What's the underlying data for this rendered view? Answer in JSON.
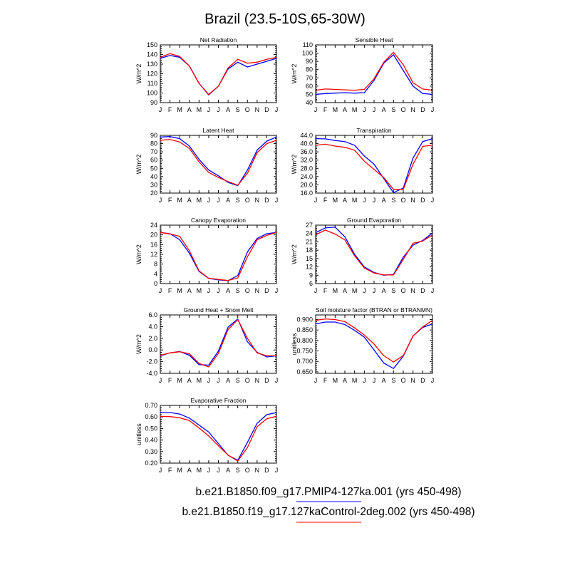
{
  "chart_data": {
    "title": "Brazil (23.5-10S,65-30W)",
    "months": [
      "J",
      "F",
      "M",
      "A",
      "M",
      "J",
      "J",
      "A",
      "S",
      "O",
      "N",
      "D",
      "J"
    ],
    "legend": [
      {
        "label": "b.e21.B1850.f09_g17.PMIP4-127ka.001 (yrs 450-498)",
        "color": "#0000ff"
      },
      {
        "label": "b.e21.B1850.f19_g17.127kaControl-2deg.002 (yrs 450-498)",
        "color": "#ff0000"
      }
    ],
    "panels": [
      {
        "type": "line",
        "title": "Net Radiation",
        "ylabel": "W/m^2",
        "ylim": [
          90,
          150
        ],
        "yticks": [
          "90",
          "100",
          "110",
          "120",
          "130",
          "140",
          "150"
        ],
        "ytick_values": [
          90,
          100,
          110,
          120,
          130,
          140,
          150
        ],
        "series": [
          {
            "name": "PMIP4-127ka",
            "color": "#0000ff",
            "values": [
              136,
              139,
              137,
              128,
              110,
              98,
              107,
              125,
              132,
              127,
              130,
              133,
              136
            ]
          },
          {
            "name": "127kaControl",
            "color": "#ff0000",
            "values": [
              137,
              141,
              138,
              128,
              110,
              98.5,
              107,
              126,
              135,
              131,
              132,
              135,
              137
            ]
          }
        ]
      },
      {
        "type": "line",
        "title": "Sensible Heat",
        "ylabel": "W/m^2",
        "ylim": [
          40,
          110
        ],
        "yticks": [
          "40",
          "50",
          "60",
          "70",
          "80",
          "90",
          "100",
          "110"
        ],
        "ytick_values": [
          40,
          50,
          60,
          70,
          80,
          90,
          100,
          110
        ],
        "series": [
          {
            "name": "PMIP4-127ka",
            "color": "#0000ff",
            "values": [
              50,
              51,
              51.5,
              52,
              51.5,
              52,
              67,
              88,
              98,
              79,
              60,
              51,
              50
            ]
          },
          {
            "name": "127kaControl",
            "color": "#ff0000",
            "values": [
              55,
              56.5,
              56,
              55.5,
              55,
              56,
              69,
              89,
              101,
              86,
              64,
              56.5,
              55
            ]
          }
        ]
      },
      {
        "type": "line",
        "title": "Latent Heat",
        "ylabel": "W/m^2",
        "ylim": [
          20,
          90
        ],
        "yticks": [
          "20",
          "30",
          "40",
          "50",
          "60",
          "70",
          "80",
          "90"
        ],
        "ytick_values": [
          20,
          30,
          40,
          50,
          60,
          70,
          80,
          90
        ],
        "series": [
          {
            "name": "PMIP4-127ka",
            "color": "#0000ff",
            "values": [
              88,
              88.5,
              86,
              77,
              61,
              48,
              41,
              33,
              29,
              48,
              72,
              83,
              88
            ]
          },
          {
            "name": "127kaControl",
            "color": "#ff0000",
            "values": [
              84,
              85,
              82,
              74,
              58,
              45,
              39,
              34,
              29.5,
              44,
              69,
              80,
              84
            ]
          }
        ]
      },
      {
        "type": "line",
        "title": "Transpiration",
        "ylabel": "W/m^2",
        "ylim": [
          16,
          44
        ],
        "yticks": [
          "16.0",
          "20.0",
          "24.0",
          "28.0",
          "32.0",
          "36.0",
          "40.0",
          "44.0"
        ],
        "ytick_values": [
          16,
          20,
          24,
          28,
          32,
          36,
          40,
          44
        ],
        "series": [
          {
            "name": "PMIP4-127ka",
            "color": "#0000ff",
            "values": [
              42.4,
              42.3,
              41.5,
              41,
              39.2,
              34,
              30,
              23,
              16.2,
              18.5,
              33,
              41,
              42.4
            ]
          },
          {
            "name": "127kaControl",
            "color": "#ff0000",
            "values": [
              39.2,
              39.7,
              38.8,
              38.2,
              36.8,
              31.5,
              27.5,
              23.5,
              17.8,
              17.8,
              30,
              38.7,
              39.2
            ]
          }
        ]
      },
      {
        "type": "line",
        "title": "Canopy Evaporation",
        "ylabel": "W/m^2",
        "ylim": [
          0,
          24
        ],
        "yticks": [
          "0",
          "4",
          "8",
          "12",
          "16",
          "20",
          "24"
        ],
        "ytick_values": [
          0,
          4,
          8,
          12,
          16,
          20,
          24
        ],
        "series": [
          {
            "name": "PMIP4-127ka",
            "color": "#0000ff",
            "values": [
              21,
              20.5,
              18,
              12.5,
              5,
              2.1,
              1.5,
              1.2,
              3.3,
              13,
              18.5,
              20.5,
              21
            ]
          },
          {
            "name": "127kaControl",
            "color": "#ff0000",
            "values": [
              21,
              20.4,
              19.4,
              13.5,
              5.2,
              2.2,
              1.7,
              1.3,
              2.3,
              11,
              18,
              19.8,
              21
            ]
          }
        ]
      },
      {
        "type": "line",
        "title": "Ground Evaporation",
        "ylabel": "W/m^2",
        "ylim": [
          6,
          27
        ],
        "yticks": [
          "6",
          "9",
          "12",
          "15",
          "18",
          "21",
          "24",
          "27"
        ],
        "ytick_values": [
          6,
          9,
          12,
          15,
          18,
          21,
          24,
          27
        ],
        "series": [
          {
            "name": "PMIP4-127ka",
            "color": "#0000ff",
            "values": [
              24.3,
              26,
              26.3,
              22.8,
              16.5,
              12,
              10,
              9,
              9.3,
              15.5,
              19.8,
              21.5,
              24.2
            ]
          },
          {
            "name": "127kaControl",
            "color": "#ff0000",
            "values": [
              23.6,
              25.2,
              23.8,
              21.7,
              16,
              11.6,
              9.8,
              9.1,
              9.1,
              14.7,
              20.5,
              21.3,
              23.5
            ]
          }
        ]
      },
      {
        "type": "line",
        "title": "Ground Heat + Snow Melt",
        "ylabel": "W/m^2",
        "ylim": [
          -4,
          6
        ],
        "yticks": [
          "-4.0",
          "-2.0",
          "0.0",
          "2.0",
          "4.0",
          "6.0"
        ],
        "ytick_values": [
          -4,
          -2,
          0,
          2,
          4,
          6
        ],
        "series": [
          {
            "name": "PMIP4-127ka",
            "color": "#0000ff",
            "values": [
              -1.0,
              -0.5,
              -0.25,
              -0.9,
              -2.5,
              -2.6,
              -0.2,
              3.9,
              5.3,
              1.4,
              -0.4,
              -1.2,
              -1.0
            ]
          },
          {
            "name": "127kaControl",
            "color": "#ff0000",
            "values": [
              -0.9,
              -0.5,
              -0.3,
              -0.65,
              -2.3,
              -2.9,
              -0.6,
              3.5,
              5.2,
              2.0,
              -0.5,
              -1.0,
              -1.0
            ]
          }
        ]
      },
      {
        "type": "line",
        "title": "Soil moisture factor (BTRAN or BTRANMN)",
        "ylabel": "unitless",
        "ylim": [
          0.643,
          0.922
        ],
        "yticks": [
          "0.650",
          "0.700",
          "0.750",
          "0.800",
          "0.850",
          "0.900"
        ],
        "ytick_values": [
          0.65,
          0.7,
          0.75,
          0.8,
          0.85,
          0.9
        ],
        "series": [
          {
            "name": "PMIP4-127ka",
            "color": "#0000ff",
            "values": [
              0.879,
              0.888,
              0.888,
              0.876,
              0.848,
              0.816,
              0.755,
              0.692,
              0.666,
              0.725,
              0.822,
              0.862,
              0.879
            ]
          },
          {
            "name": "127kaControl",
            "color": "#ff0000",
            "values": [
              0.896,
              0.903,
              0.9,
              0.89,
              0.86,
              0.826,
              0.783,
              0.727,
              0.697,
              0.728,
              0.821,
              0.865,
              0.896
            ]
          }
        ]
      },
      {
        "type": "line",
        "title": "Evaporative Fraction",
        "ylabel": "unitless",
        "ylim": [
          0.2,
          0.7
        ],
        "yticks": [
          "0.20",
          "0.30",
          "0.40",
          "0.50",
          "0.60",
          "0.70"
        ],
        "ytick_values": [
          0.2,
          0.3,
          0.4,
          0.5,
          0.6,
          0.7
        ],
        "series": [
          {
            "name": "PMIP4-127ka",
            "color": "#0000ff",
            "values": [
              0.638,
              0.638,
              0.625,
              0.59,
              0.53,
              0.47,
              0.37,
              0.268,
              0.225,
              0.38,
              0.545,
              0.62,
              0.638
            ]
          },
          {
            "name": "127kaControl",
            "color": "#ff0000",
            "values": [
              0.605,
              0.603,
              0.593,
              0.568,
              0.505,
              0.435,
              0.35,
              0.27,
              0.218,
              0.335,
              0.515,
              0.585,
              0.605
            ]
          }
        ]
      }
    ]
  }
}
